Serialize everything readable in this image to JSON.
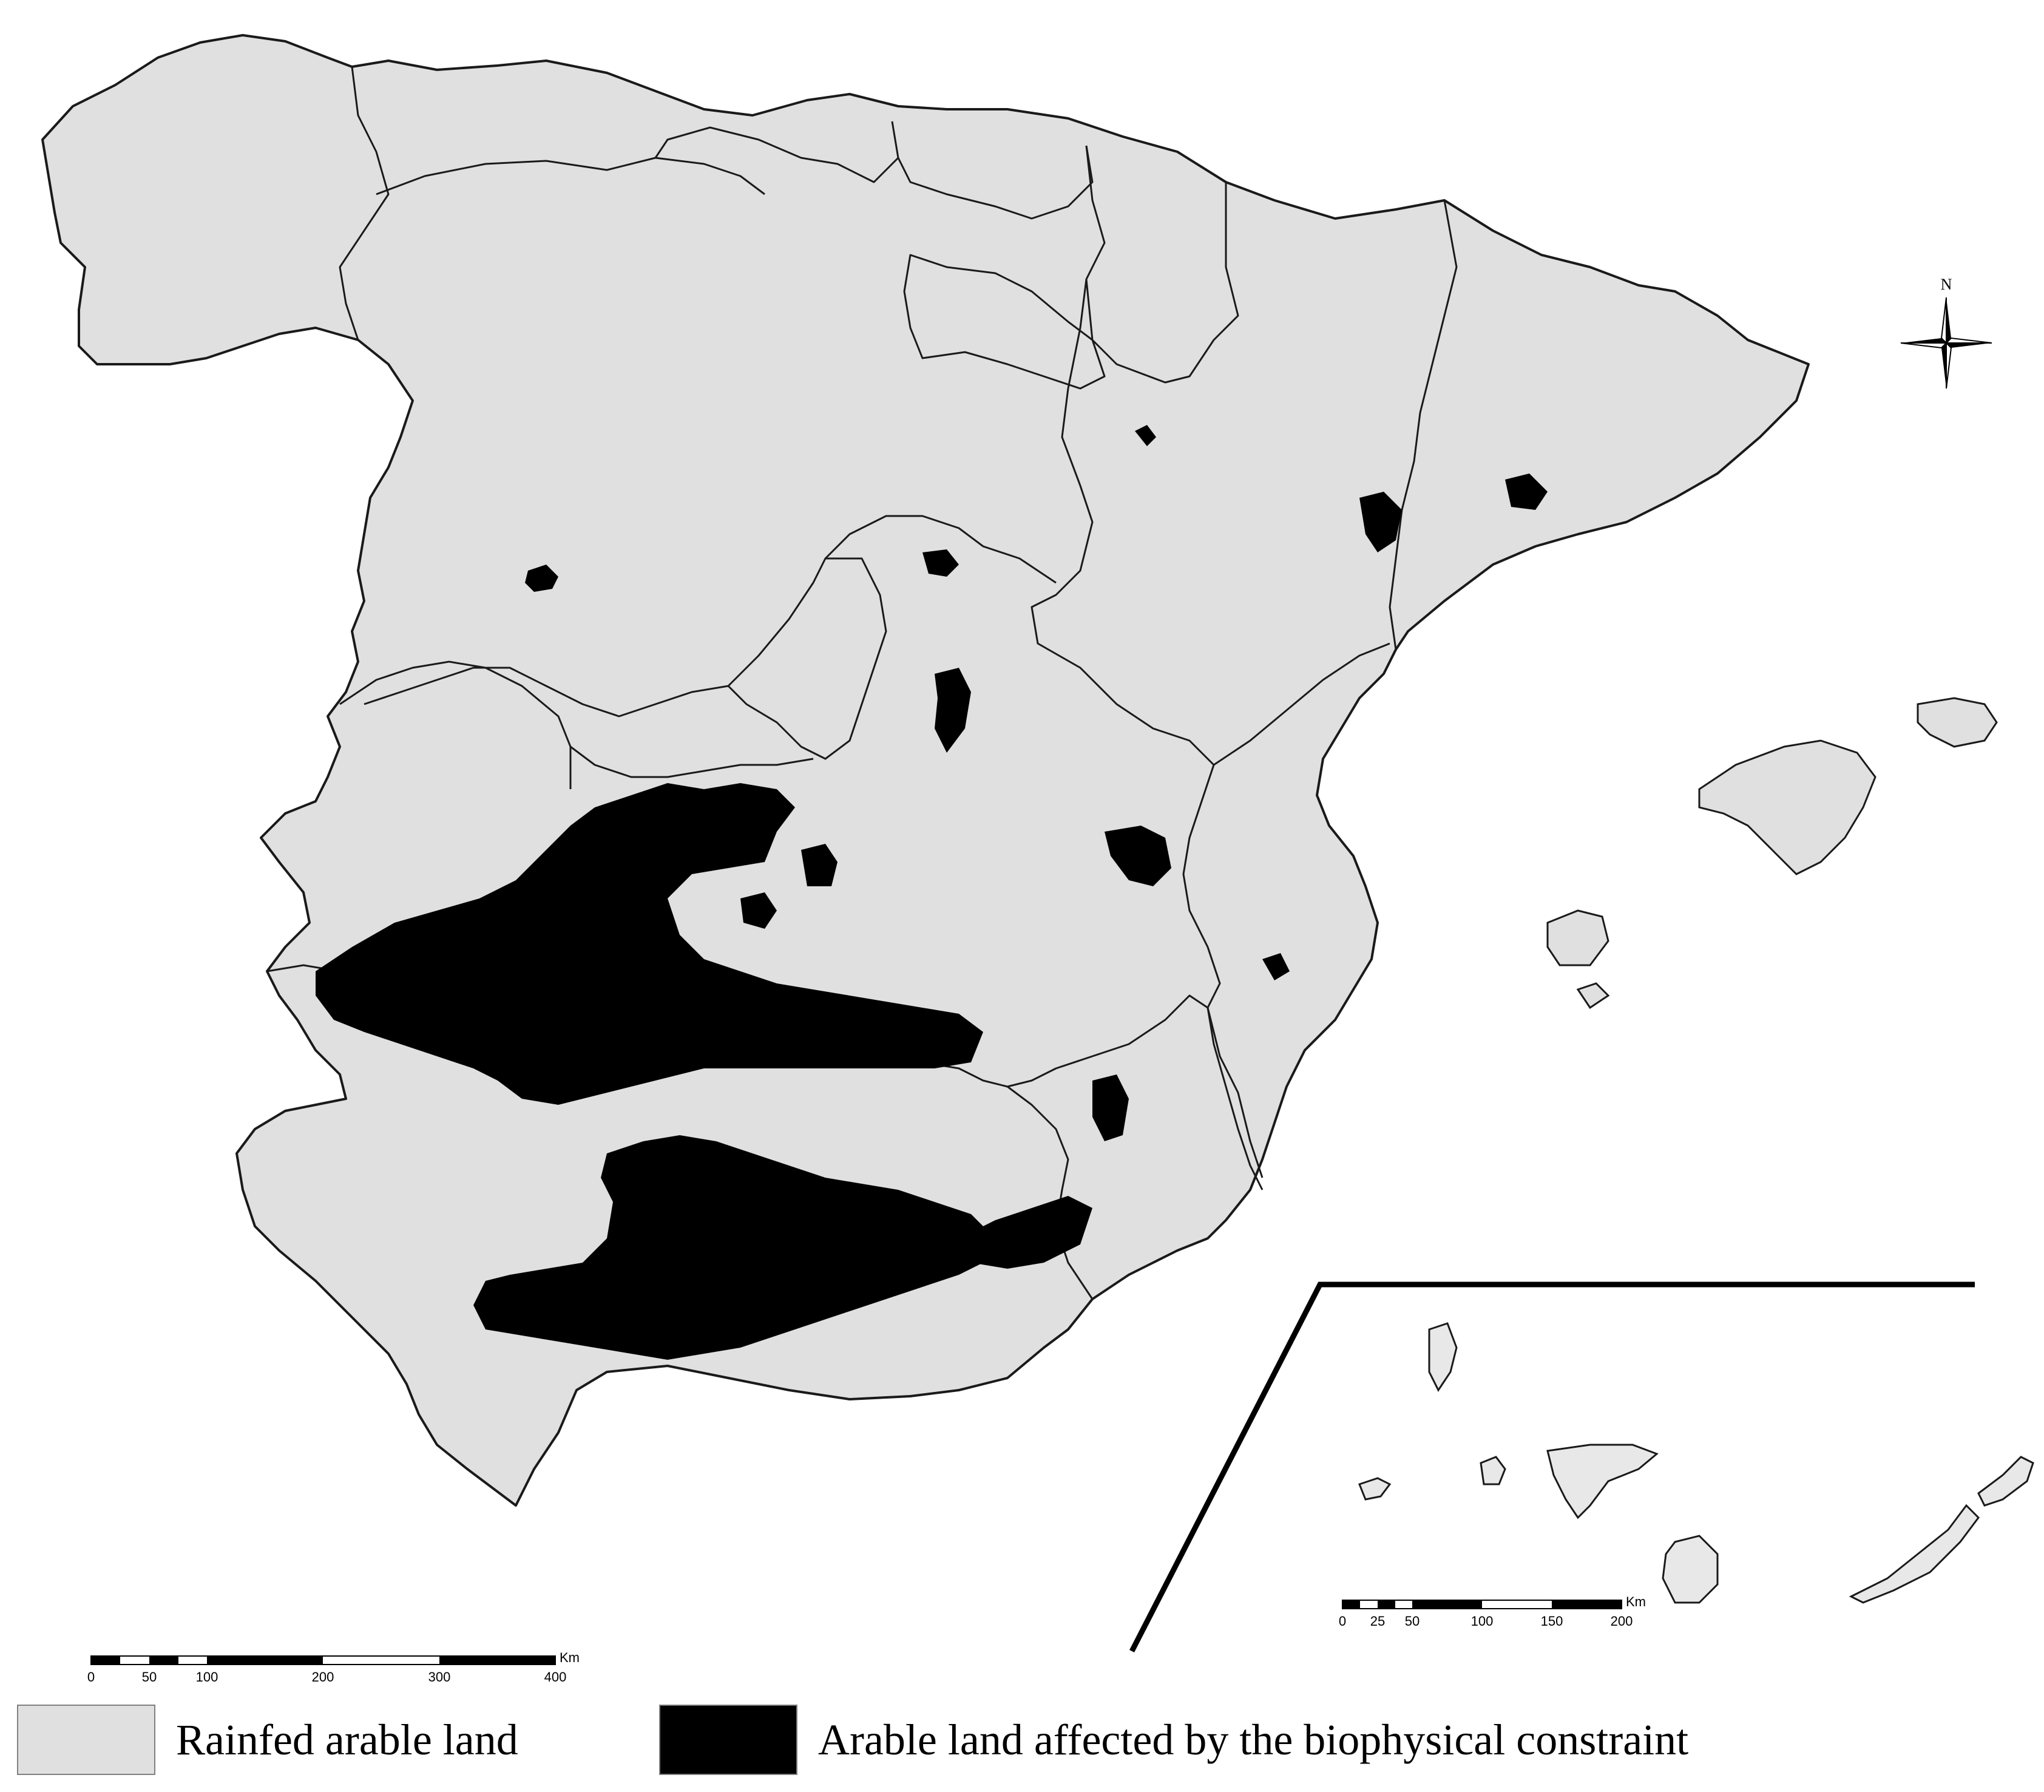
{
  "colors": {
    "rainfed": "#e0e0e0",
    "affected": "#000000",
    "border": "#1a1a1a",
    "background": "#ffffff"
  },
  "compass": {
    "label": "N"
  },
  "scale_main": {
    "unit": "Km",
    "ticks": [
      "0",
      "50",
      "100",
      "200",
      "300",
      "400"
    ]
  },
  "scale_canary": {
    "unit": "Km",
    "ticks": [
      "0",
      "25",
      "50",
      "100",
      "150",
      "200"
    ]
  },
  "legend": [
    {
      "label": "Rainfed arable land",
      "color": "#e0e0e0"
    },
    {
      "label": "Arable land affected by the biophysical constraint",
      "color": "#000000"
    }
  ]
}
